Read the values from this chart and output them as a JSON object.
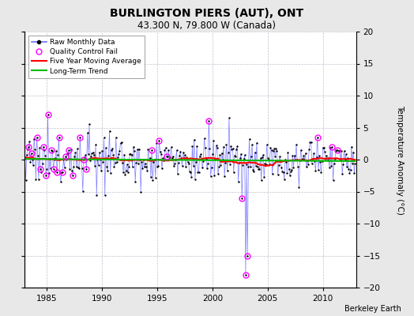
{
  "title": "BURLINGTON PIERS (AUT), ONT",
  "subtitle": "43.300 N, 79.800 W (Canada)",
  "ylabel": "Temperature Anomaly (°C)",
  "credit": "Berkeley Earth",
  "xlim": [
    1983.0,
    2013.0
  ],
  "ylim": [
    -20,
    20
  ],
  "yticks": [
    -20,
    -15,
    -10,
    -5,
    0,
    5,
    10,
    15,
    20
  ],
  "xticks": [
    1985,
    1990,
    1995,
    2000,
    2005,
    2010
  ],
  "line_color": "#7070ff",
  "marker_color": "#000000",
  "qc_color": "#ff00ff",
  "moving_avg_color": "#ff0000",
  "trend_color": "#00bb00",
  "background_color": "#e8e8e8",
  "plot_bg_color": "#ffffff",
  "grid_color": "#c0c0d0"
}
